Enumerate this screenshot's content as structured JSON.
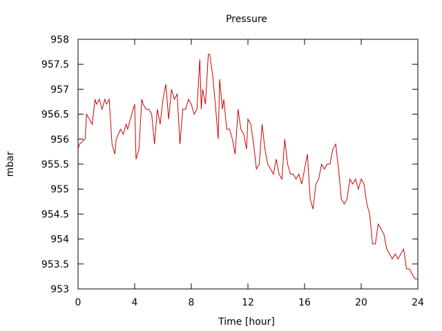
{
  "chart_data": {
    "type": "line",
    "title": "Pressure",
    "xlabel": "Time [hour]",
    "ylabel": "mbar",
    "xlim": [
      0,
      24
    ],
    "ylim": [
      953,
      958
    ],
    "xticks": [
      0,
      4,
      8,
      12,
      16,
      20,
      24
    ],
    "xtick_labels": [
      "0",
      "4",
      "8",
      "12",
      "16",
      "20",
      "24"
    ],
    "yticks": [
      953,
      953.5,
      954,
      954.5,
      955,
      955.5,
      956,
      956.5,
      957,
      957.5,
      958
    ],
    "ytick_labels": [
      "953",
      "953.5",
      "954",
      "954.5",
      "955",
      "955.5",
      "956",
      "956.5",
      "957",
      "957.5",
      "958"
    ],
    "grid": false,
    "line_color": "#cc0000",
    "series": [
      {
        "x": [
          0.0,
          0.1,
          0.5,
          0.6,
          0.8,
          1.0,
          1.2,
          1.3,
          1.5,
          1.7,
          1.9,
          2.0,
          2.2,
          2.4,
          2.5,
          2.6,
          2.7,
          3.0,
          3.2,
          3.4,
          3.5,
          3.7,
          3.9,
          4.0,
          4.1,
          4.3,
          4.5,
          4.6,
          4.8,
          5.0,
          5.2,
          5.4,
          5.6,
          5.8,
          6.0,
          6.2,
          6.4,
          6.6,
          6.8,
          7.0,
          7.2,
          7.4,
          7.6,
          7.8,
          8.0,
          8.2,
          8.4,
          8.6,
          8.7,
          8.8,
          9.0,
          9.2,
          9.3,
          9.5,
          9.7,
          9.9,
          10.0,
          10.2,
          10.3,
          10.5,
          10.7,
          10.9,
          11.1,
          11.3,
          11.5,
          11.7,
          11.9,
          12.0,
          12.2,
          12.4,
          12.6,
          12.8,
          13.0,
          13.2,
          13.4,
          13.6,
          13.8,
          14.0,
          14.2,
          14.4,
          14.6,
          14.8,
          15.0,
          15.2,
          15.4,
          15.6,
          15.8,
          16.0,
          16.2,
          16.4,
          16.6,
          16.8,
          17.0,
          17.2,
          17.4,
          17.6,
          17.8,
          18.0,
          18.2,
          18.4,
          18.6,
          18.8,
          19.0,
          19.2,
          19.4,
          19.6,
          19.8,
          20.0,
          20.2,
          20.4,
          20.6,
          20.8,
          21.0,
          21.2,
          21.4,
          21.6,
          21.8,
          22.0,
          22.2,
          22.4,
          22.6,
          22.8,
          23.0,
          23.2,
          23.4,
          23.6,
          23.8,
          24.0
        ],
        "values": [
          955.8,
          955.9,
          956.0,
          956.5,
          956.4,
          956.3,
          956.8,
          956.7,
          956.8,
          956.6,
          956.8,
          956.7,
          956.8,
          955.9,
          955.8,
          955.7,
          956.0,
          956.2,
          956.1,
          956.3,
          956.2,
          956.4,
          956.6,
          956.7,
          955.6,
          955.8,
          956.8,
          956.7,
          956.6,
          956.6,
          956.5,
          955.9,
          956.6,
          956.3,
          956.8,
          957.1,
          956.4,
          957.0,
          956.8,
          956.9,
          955.9,
          956.6,
          956.6,
          956.8,
          956.7,
          956.5,
          956.6,
          957.6,
          956.6,
          957.0,
          956.7,
          957.7,
          957.7,
          957.3,
          956.7,
          956.0,
          957.2,
          956.6,
          956.8,
          956.2,
          956.2,
          956.0,
          955.7,
          956.6,
          956.2,
          956.1,
          955.8,
          956.4,
          956.3,
          955.9,
          955.4,
          955.5,
          956.3,
          955.8,
          955.5,
          955.4,
          955.3,
          955.6,
          955.3,
          955.2,
          956.0,
          955.5,
          955.3,
          955.3,
          955.2,
          955.3,
          955.1,
          955.4,
          955.7,
          954.8,
          954.6,
          955.1,
          955.2,
          955.5,
          955.4,
          955.5,
          955.5,
          955.8,
          955.9,
          955.4,
          954.8,
          954.7,
          954.8,
          955.2,
          955.1,
          955.2,
          955.0,
          955.2,
          955.1,
          954.7,
          954.5,
          953.9,
          953.9,
          954.3,
          954.2,
          954.1,
          953.8,
          953.7,
          953.6,
          953.7,
          953.6,
          953.7,
          953.8,
          953.4,
          953.4,
          953.3,
          953.2,
          953.2
        ]
      }
    ]
  }
}
